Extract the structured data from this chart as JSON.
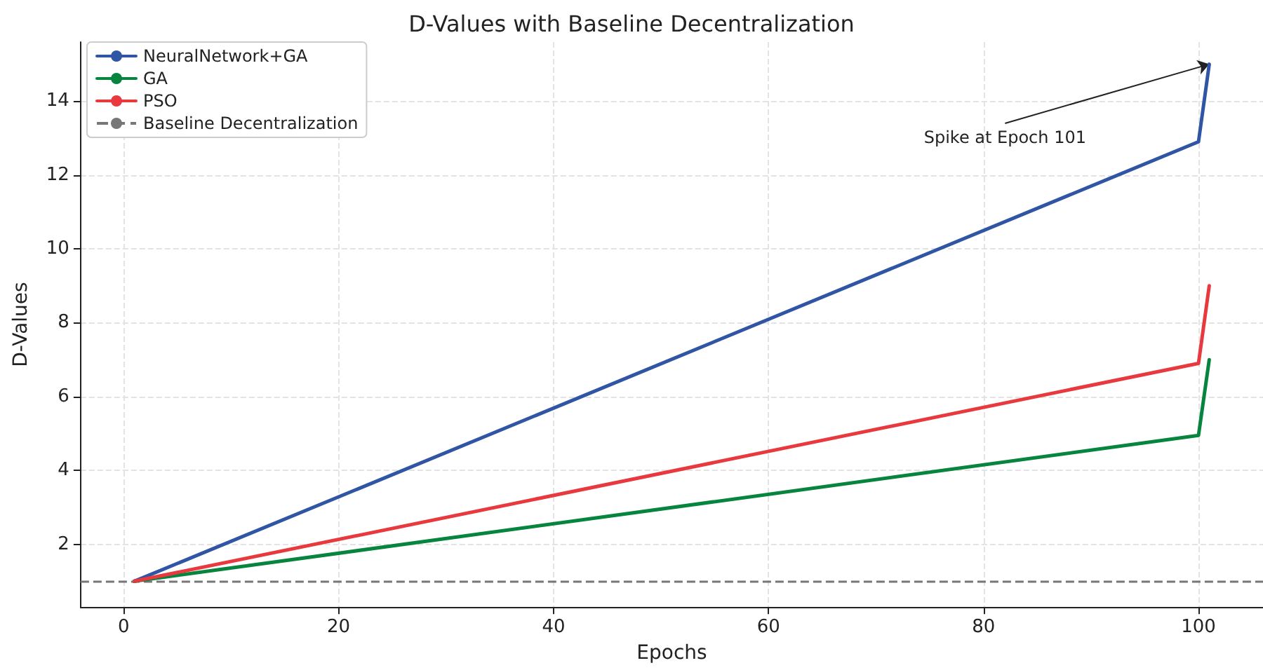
{
  "chart_data": {
    "type": "line",
    "title": "D-Values with Baseline Decentralization",
    "xlabel": "Epochs",
    "ylabel": "D-Values",
    "x": [
      1,
      100,
      101
    ],
    "series": [
      {
        "name": "NeuralNetwork+GA",
        "color": "#2f55a4",
        "values": [
          1,
          12.9,
          15
        ]
      },
      {
        "name": "GA",
        "color": "#07843e",
        "values": [
          1,
          4.95,
          7
        ]
      },
      {
        "name": "PSO",
        "color": "#e8393f",
        "values": [
          1,
          6.9,
          9
        ]
      }
    ],
    "ref_lines": [
      {
        "axis": "y",
        "value": 1,
        "label": "Baseline Decentralization",
        "color": "#777777",
        "line_style": "dashed"
      }
    ],
    "annotations": [
      {
        "text": "Spike at Epoch 101",
        "x": 101,
        "y": 15
      }
    ],
    "xlim": [
      -4,
      106
    ],
    "xticks": [
      0,
      20,
      40,
      60,
      80,
      100
    ],
    "ylim": [
      0.3,
      15.6
    ],
    "yticks": [
      2,
      4,
      6,
      8,
      10,
      12,
      14
    ],
    "grid": true,
    "legend": "top left",
    "marker": "none",
    "line_style": "solid"
  }
}
